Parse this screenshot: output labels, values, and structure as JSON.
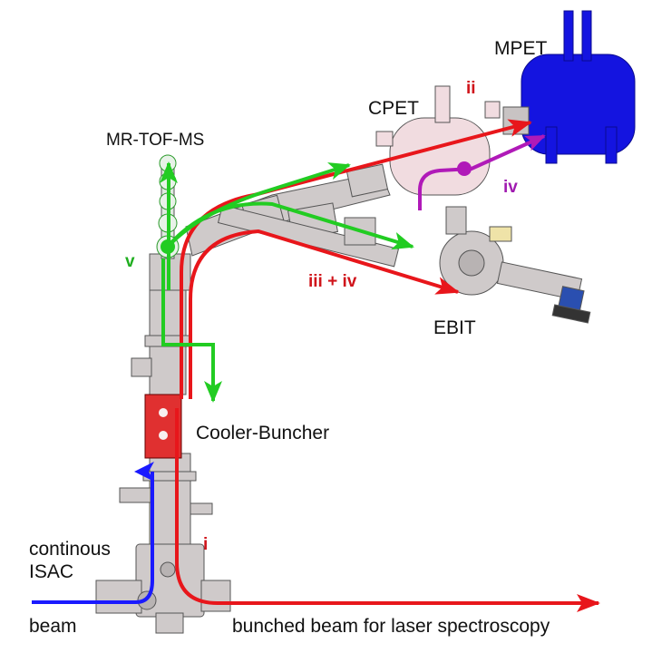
{
  "labels": {
    "mpet": "MPET",
    "cpet": "CPET",
    "mrtof": "MR-TOF-MS",
    "ebit": "EBIT",
    "cooler": "Cooler-Buncher",
    "continous": "continous",
    "isac": "ISAC",
    "beam": "beam",
    "bunched": "bunched beam for laser spectroscopy"
  },
  "path_labels": {
    "i": "i",
    "ii": "ii",
    "iii_iv": "iii + iv",
    "iv": "iv",
    "v": "v"
  },
  "colors": {
    "continuous_beam": "#1a1aff",
    "bunched_beam": "#e8161b",
    "mrtof_path": "#22cc22",
    "ebit_mpet_path": "#b01ab8",
    "mpet_body": "#1414e0",
    "cpet_body": "#f1dce0",
    "cooler_body": "#e03030",
    "equipment": "#c9c4c4",
    "red_label": "#d0141b",
    "green_label": "#1fae1f",
    "purple_label": "#a01ab0"
  }
}
